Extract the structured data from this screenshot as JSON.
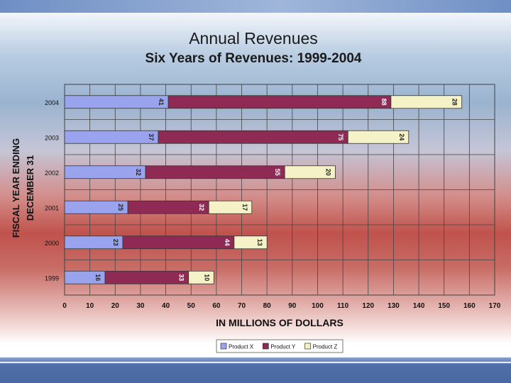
{
  "chart_data": {
    "type": "bar",
    "orientation": "horizontal",
    "stacked": true,
    "title": "Annual Revenues",
    "subtitle": "Six Years of Revenues: 1999-2004",
    "xlabel": "IN MILLIONS OF DOLLARS",
    "ylabel_lines": [
      "FISCAL YEAR ENDING",
      "DECEMBER 31"
    ],
    "categories": [
      "1999",
      "2000",
      "2001",
      "2002",
      "2003",
      "2004"
    ],
    "series": [
      {
        "name": "Product X",
        "values": [
          16,
          23,
          25,
          32,
          37,
          41
        ],
        "color": "#9aa4ee"
      },
      {
        "name": "Product Y",
        "values": [
          33,
          44,
          32,
          55,
          75,
          88
        ],
        "color": "#8e2a54"
      },
      {
        "name": "Product Z",
        "values": [
          10,
          13,
          17,
          20,
          24,
          28
        ],
        "color": "#f6f2c8"
      }
    ],
    "xlim": [
      0,
      170
    ],
    "xticks": [
      0,
      10,
      20,
      30,
      40,
      50,
      60,
      70,
      80,
      90,
      100,
      110,
      120,
      130,
      140,
      150,
      160,
      170
    ],
    "grid": true,
    "legend_position": "bottom"
  }
}
